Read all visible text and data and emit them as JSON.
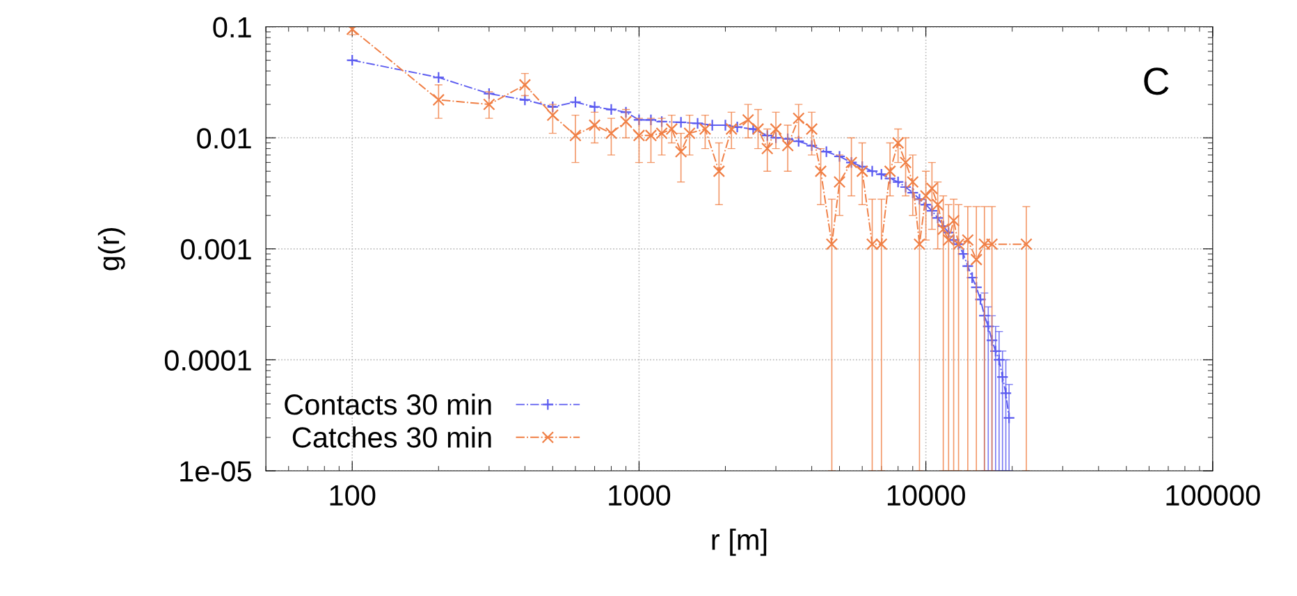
{
  "chart_data": {
    "type": "line",
    "xlabel": "r [m]",
    "ylabel": "g(r)",
    "annotations": [
      "C"
    ],
    "log": "xy",
    "grid": true,
    "legend": "bottom left",
    "line_style": "dashed",
    "xlim": [
      50,
      100000
    ],
    "xticks": [
      100,
      1000,
      10000,
      100000
    ],
    "ylim": [
      1e-05,
      0.1
    ],
    "yticks": [
      {
        "value": 1e-05,
        "label": "1e-05"
      },
      {
        "value": 0.0001,
        "label": "0.0001"
      },
      {
        "value": 0.001,
        "label": "0.001"
      },
      {
        "value": 0.01,
        "label": "0.01"
      },
      {
        "value": 0.1,
        "label": "0.1"
      }
    ],
    "series": [
      {
        "name": "Contacts 30 min",
        "color": "#5b5bf0",
        "marker": "plus",
        "x": [
          100,
          200,
          300,
          400,
          500,
          600,
          700,
          800,
          900,
          1000,
          1100,
          1200,
          1400,
          1600,
          1800,
          2000,
          2200,
          2500,
          2800,
          3000,
          3300,
          3600,
          4000,
          4500,
          5000,
          5500,
          6000,
          6500,
          7000,
          7500,
          8000,
          8500,
          9000,
          9500,
          10000,
          10500,
          11000,
          11500,
          12000,
          12500,
          13000,
          13500,
          14000,
          14500,
          15000,
          15500,
          16000,
          16500,
          17000,
          17500,
          18000,
          18500,
          19000,
          19500
        ],
        "values": [
          0.05,
          0.035,
          0.025,
          0.022,
          0.019,
          0.021,
          0.019,
          0.018,
          0.017,
          0.0145,
          0.0145,
          0.014,
          0.0138,
          0.0135,
          0.013,
          0.013,
          0.0125,
          0.012,
          0.0105,
          0.01,
          0.0098,
          0.0093,
          0.0085,
          0.0075,
          0.0068,
          0.006,
          0.0055,
          0.005,
          0.0047,
          0.0043,
          0.004,
          0.0036,
          0.0032,
          0.0028,
          0.0025,
          0.0022,
          0.0019,
          0.0016,
          0.0014,
          0.0012,
          0.0011,
          0.0009,
          0.0007,
          0.00055,
          0.00045,
          0.00035,
          0.00025,
          0.0002,
          0.00015,
          0.00012,
          0.0001,
          7e-05,
          5e-05,
          3e-05
        ],
        "errors": [
          null,
          null,
          null,
          null,
          null,
          null,
          null,
          null,
          null,
          null,
          null,
          null,
          null,
          null,
          null,
          null,
          null,
          null,
          null,
          null,
          null,
          null,
          null,
          null,
          null,
          null,
          null,
          null,
          null,
          null,
          null,
          null,
          null,
          null,
          null,
          null,
          null,
          null,
          null,
          null,
          null,
          null,
          null,
          null,
          null,
          null,
          [
            1e-05,
            0.0004
          ],
          [
            1e-05,
            0.0003
          ],
          [
            1e-05,
            0.00025
          ],
          [
            1e-05,
            0.0002
          ],
          [
            1e-05,
            0.00018
          ],
          [
            1e-05,
            0.00012
          ],
          [
            1e-05,
            0.0001
          ],
          [
            1e-05,
            6e-05
          ]
        ]
      },
      {
        "name": "Catches 30 min",
        "color": "#f07f45",
        "marker": "cross",
        "x": [
          100,
          200,
          300,
          400,
          500,
          600,
          700,
          800,
          900,
          1000,
          1100,
          1200,
          1300,
          1400,
          1500,
          1700,
          1900,
          2100,
          2400,
          2600,
          2800,
          3000,
          3300,
          3600,
          4000,
          4300,
          4700,
          5000,
          5500,
          6000,
          6500,
          7000,
          7500,
          8000,
          8500,
          9000,
          9500,
          10000,
          10500,
          11000,
          11500,
          12000,
          12500,
          13000,
          14000,
          15000,
          16000,
          17000,
          22400
        ],
        "values": [
          0.095,
          0.022,
          0.02,
          0.03,
          0.016,
          0.0105,
          0.013,
          0.011,
          0.014,
          0.0105,
          0.0105,
          0.011,
          0.012,
          0.0075,
          0.011,
          0.012,
          0.005,
          0.012,
          0.0145,
          0.012,
          0.008,
          0.012,
          0.0085,
          0.015,
          0.012,
          0.005,
          0.0011,
          0.004,
          0.006,
          0.005,
          0.0011,
          0.0011,
          0.005,
          0.009,
          0.006,
          0.004,
          0.0011,
          0.003,
          0.0035,
          0.0025,
          0.0015,
          0.0012,
          0.0018,
          0.0011,
          0.0012,
          0.0008,
          0.0011,
          0.0011,
          0.0011
        ],
        "errors": [
          [
            0.085,
            0.1
          ],
          [
            0.015,
            0.03
          ],
          [
            0.015,
            0.026
          ],
          [
            0.024,
            0.038
          ],
          [
            0.011,
            0.02
          ],
          [
            0.006,
            0.016
          ],
          [
            0.009,
            0.017
          ],
          [
            0.007,
            0.015
          ],
          [
            0.01,
            0.018
          ],
          [
            0.006,
            0.015
          ],
          [
            0.006,
            0.015
          ],
          [
            0.007,
            0.015
          ],
          [
            0.009,
            0.016
          ],
          [
            0.004,
            0.011
          ],
          [
            0.007,
            0.016
          ],
          [
            0.008,
            0.016
          ],
          [
            0.0025,
            0.009
          ],
          [
            0.008,
            0.017
          ],
          [
            0.01,
            0.02
          ],
          [
            0.008,
            0.018
          ],
          [
            0.005,
            0.012
          ],
          [
            0.008,
            0.017
          ],
          [
            0.005,
            0.013
          ],
          [
            0.01,
            0.02
          ],
          [
            0.007,
            0.017
          ],
          [
            0.0025,
            0.008
          ],
          [
            1e-05,
            0.0028
          ],
          [
            0.002,
            0.007
          ],
          [
            0.003,
            0.01
          ],
          [
            0.0025,
            0.009
          ],
          [
            1e-05,
            0.0028
          ],
          [
            1e-05,
            0.0028
          ],
          [
            0.003,
            0.009
          ],
          [
            0.006,
            0.012
          ],
          [
            0.003,
            0.01
          ],
          [
            0.002,
            0.007
          ],
          [
            1e-05,
            0.0028
          ],
          [
            0.0012,
            0.005
          ],
          [
            0.0015,
            0.006
          ],
          [
            0.001,
            0.004
          ],
          [
            1e-05,
            0.003
          ],
          [
            1e-05,
            0.0025
          ],
          [
            1e-05,
            0.0028
          ],
          [
            1e-05,
            0.0025
          ],
          [
            1e-05,
            0.0024
          ],
          [
            1e-05,
            0.0024
          ],
          [
            1e-05,
            0.0024
          ],
          [
            1e-05,
            0.0024
          ],
          [
            1e-05,
            0.0024
          ]
        ]
      }
    ]
  }
}
